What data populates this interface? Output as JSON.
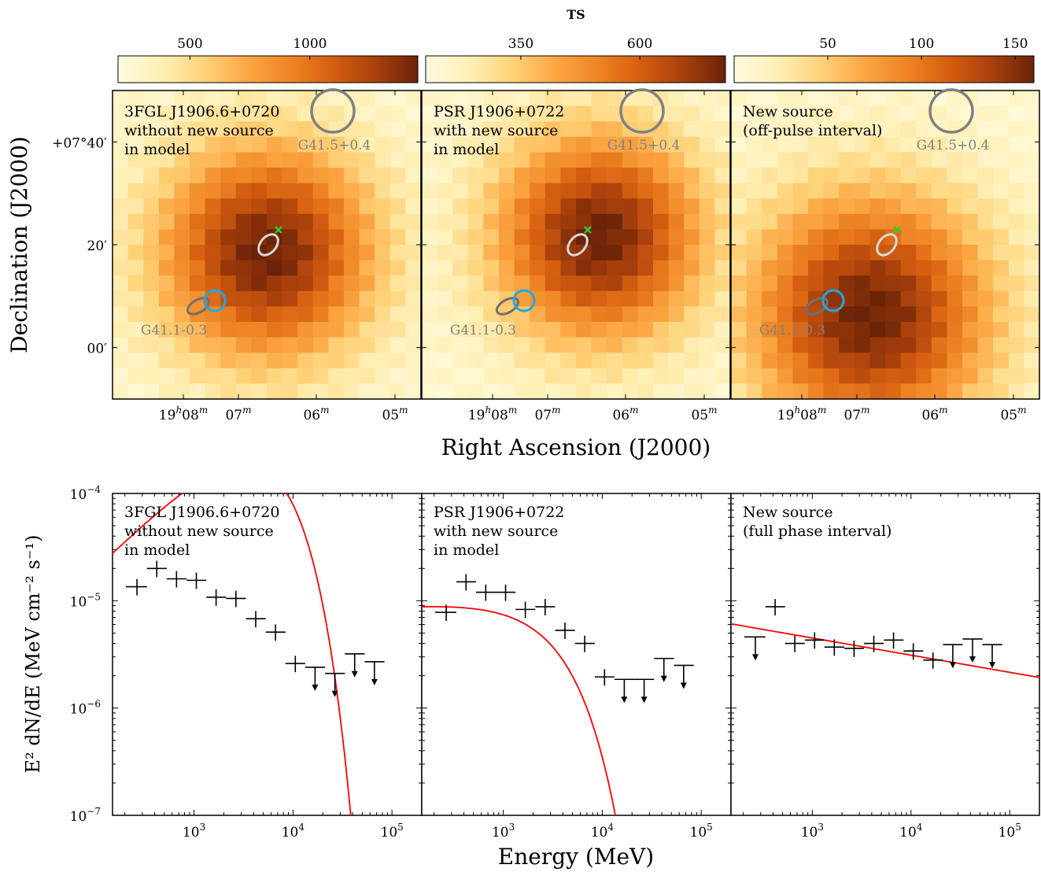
{
  "colorbar": {
    "title": "TS",
    "panels": [
      {
        "ticks": [
          {
            "value": 500,
            "label": "500"
          },
          {
            "value": 1000,
            "label": "1000"
          }
        ],
        "range": [
          200,
          1450
        ]
      },
      {
        "ticks": [
          {
            "value": 350,
            "label": "350"
          },
          {
            "value": 600,
            "label": "600"
          }
        ],
        "range": [
          150,
          780
        ]
      },
      {
        "ticks": [
          {
            "value": 50,
            "label": "50"
          },
          {
            "value": 100,
            "label": "100"
          },
          {
            "value": 150,
            "label": "150"
          }
        ],
        "range": [
          0,
          160
        ]
      }
    ],
    "colors": [
      "#fffbe0",
      "#fff0b6",
      "#ffd37a",
      "#fca845",
      "#ef8524",
      "#d65f10",
      "#a9400c",
      "#6b2307"
    ]
  },
  "maps": {
    "ylabel": "Declination (J2000)",
    "xlabel": "Right Ascension (J2000)",
    "y_ticks": [
      {
        "dec_arcmin": 40,
        "label": "+07°40′"
      },
      {
        "dec_arcmin": 20,
        "label": "20′"
      },
      {
        "dec_arcmin": 0,
        "label": "00′"
      }
    ],
    "x_ticks": [
      {
        "ra_min": 8,
        "prefix": "19",
        "sup1": "h",
        "main": "08",
        "sup2": "m"
      },
      {
        "ra_min": 7,
        "prefix": "",
        "sup1": "",
        "main": "07",
        "sup2": "m"
      },
      {
        "ra_min": 6,
        "prefix": "",
        "sup1": "",
        "main": "06",
        "sup2": "m"
      },
      {
        "ra_min": 5,
        "prefix": "",
        "sup1": "",
        "main": "05",
        "sup2": "m"
      }
    ],
    "snr_labels": {
      "top": "G41.5+0.4",
      "bottom": "G41.1-0.3"
    },
    "panels": [
      {
        "lines": [
          "3FGL J1906.6+0720",
          "without new source",
          "in model"
        ],
        "peak": [
          7.5,
          8.0
        ],
        "sigma": 3.2,
        "max_ts": 1450,
        "min_ts": 200
      },
      {
        "lines": [
          "PSR J1906+0722",
          "with new source",
          "in model"
        ],
        "peak": [
          9.0,
          7.0
        ],
        "sigma": 3.1,
        "max_ts": 780,
        "min_ts": 150
      },
      {
        "lines": [
          "New source",
          "(off-pulse interval)"
        ],
        "peak": [
          6.5,
          12.0
        ],
        "sigma": 3.6,
        "max_ts": 160,
        "min_ts": 0
      }
    ],
    "colors": {
      "psr_marker": "#33cc33",
      "new_source_circle": "#1fa9e1",
      "snr_circle": "#808080",
      "ellipse_light": "#d8d8d8",
      "ellipse_dark": "#707070"
    }
  },
  "spectra": {
    "xlabel": "Energy (MeV)",
    "ylabel": "E² dN/dE (MeV cm⁻² s⁻¹)",
    "x_ticks": [
      {
        "exp": 3,
        "base": "10",
        "sup": "3"
      },
      {
        "exp": 4,
        "base": "10",
        "sup": "4"
      },
      {
        "exp": 5,
        "base": "10",
        "sup": "5"
      }
    ],
    "y_ticks": [
      {
        "exp": -4,
        "base": "10",
        "sup": "−4"
      },
      {
        "exp": -5,
        "base": "10",
        "sup": "−5"
      },
      {
        "exp": -6,
        "base": "10",
        "sup": "−6"
      },
      {
        "exp": -7,
        "base": "10",
        "sup": "−7"
      }
    ],
    "xlim": [
      150,
      200000
    ],
    "ylim": [
      1e-07,
      0.0001
    ],
    "model_color": "#ff0000"
  },
  "chart_data": [
    {
      "type": "scatter",
      "title": "3FGL J1906.6+0720 without new source in model",
      "xlabel": "Energy (MeV)",
      "ylabel": "E² dN/dE (MeV cm⁻² s⁻¹)",
      "x_scale": "log",
      "y_scale": "log",
      "xlim": [
        150,
        200000
      ],
      "ylim": [
        1e-07,
        0.0001
      ],
      "points": [
        {
          "e": 265,
          "lo": 205,
          "hi": 335,
          "y": 1.35e-05
        },
        {
          "e": 420,
          "lo": 335,
          "hi": 530,
          "y": 2e-05
        },
        {
          "e": 665,
          "lo": 530,
          "hi": 840,
          "y": 1.6e-05
        },
        {
          "e": 1055,
          "lo": 840,
          "hi": 1330,
          "y": 1.55e-05
        },
        {
          "e": 1670,
          "lo": 1330,
          "hi": 2110,
          "y": 1.08e-05
        },
        {
          "e": 2650,
          "lo": 2110,
          "hi": 3340,
          "y": 1.05e-05
        },
        {
          "e": 4200,
          "lo": 3340,
          "hi": 5300,
          "y": 6.8e-06
        },
        {
          "e": 6650,
          "lo": 5300,
          "hi": 8400,
          "y": 5.1e-06
        },
        {
          "e": 10550,
          "lo": 8400,
          "hi": 13300,
          "y": 2.6e-06
        },
        {
          "e": 16700,
          "lo": 13300,
          "hi": 21100,
          "y": 2.4e-06,
          "ul": true
        },
        {
          "e": 26500,
          "lo": 21100,
          "hi": 33400,
          "y": 2.1e-06,
          "ul": true
        },
        {
          "e": 42000,
          "lo": 33400,
          "hi": 53000,
          "y": 3.2e-06,
          "ul": true
        },
        {
          "e": 66500,
          "lo": 53000,
          "hi": 84000,
          "y": 2.7e-06,
          "ul": true
        }
      ],
      "model": {
        "form": "exp_cutoff",
        "norm": 2e-05,
        "e0": 100,
        "index": 1.1,
        "cutoff": 3600
      }
    },
    {
      "type": "scatter",
      "title": "PSR J1906+0722 with new source in model",
      "xlabel": "Energy (MeV)",
      "ylabel": "E² dN/dE (MeV cm⁻² s⁻¹)",
      "x_scale": "log",
      "y_scale": "log",
      "xlim": [
        150,
        200000
      ],
      "ylim": [
        1e-07,
        0.0001
      ],
      "points": [
        {
          "e": 265,
          "lo": 205,
          "hi": 335,
          "y": 7.8e-06
        },
        {
          "e": 420,
          "lo": 335,
          "hi": 530,
          "y": 1.5e-05
        },
        {
          "e": 665,
          "lo": 530,
          "hi": 840,
          "y": 1.2e-05
        },
        {
          "e": 1055,
          "lo": 840,
          "hi": 1330,
          "y": 1.2e-05
        },
        {
          "e": 1670,
          "lo": 1330,
          "hi": 2110,
          "y": 8.3e-06
        },
        {
          "e": 2650,
          "lo": 2110,
          "hi": 3340,
          "y": 8.8e-06
        },
        {
          "e": 4200,
          "lo": 3340,
          "hi": 5300,
          "y": 5.3e-06
        },
        {
          "e": 6650,
          "lo": 5300,
          "hi": 8400,
          "y": 4e-06
        },
        {
          "e": 10550,
          "lo": 8400,
          "hi": 13300,
          "y": 1.95e-06
        },
        {
          "e": 16700,
          "lo": 13300,
          "hi": 21100,
          "y": 1.85e-06,
          "ul": true
        },
        {
          "e": 26500,
          "lo": 21100,
          "hi": 33400,
          "y": 1.85e-06,
          "ul": true
        },
        {
          "e": 42000,
          "lo": 33400,
          "hi": 53000,
          "y": 2.9e-06,
          "ul": true
        },
        {
          "e": 66500,
          "lo": 53000,
          "hi": 84000,
          "y": 2.5e-06,
          "ul": true
        }
      ],
      "model": {
        "form": "exp_cutoff",
        "norm": 9e-06,
        "e0": 100,
        "index": 1.93,
        "cutoff": 2800
      }
    },
    {
      "type": "scatter",
      "title": "New source (full phase interval)",
      "xlabel": "Energy (MeV)",
      "ylabel": "E² dN/dE (MeV cm⁻² s⁻¹)",
      "x_scale": "log",
      "y_scale": "log",
      "xlim": [
        150,
        200000
      ],
      "ylim": [
        1e-07,
        0.0001
      ],
      "points": [
        {
          "e": 265,
          "lo": 205,
          "hi": 335,
          "y": 4.6e-06,
          "ul": true
        },
        {
          "e": 420,
          "lo": 335,
          "hi": 530,
          "y": 8.8e-06
        },
        {
          "e": 665,
          "lo": 530,
          "hi": 840,
          "y": 4e-06
        },
        {
          "e": 1055,
          "lo": 840,
          "hi": 1330,
          "y": 4.3e-06
        },
        {
          "e": 1670,
          "lo": 1330,
          "hi": 2110,
          "y": 3.7e-06
        },
        {
          "e": 2650,
          "lo": 2110,
          "hi": 3340,
          "y": 3.6e-06
        },
        {
          "e": 4200,
          "lo": 3340,
          "hi": 5300,
          "y": 4e-06
        },
        {
          "e": 6650,
          "lo": 5300,
          "hi": 8400,
          "y": 4.3e-06
        },
        {
          "e": 10550,
          "lo": 8400,
          "hi": 13300,
          "y": 3.4e-06
        },
        {
          "e": 16700,
          "lo": 13300,
          "hi": 21100,
          "y": 2.8e-06
        },
        {
          "e": 26500,
          "lo": 21100,
          "hi": 33400,
          "y": 3.9e-06,
          "ul": true
        },
        {
          "e": 42000,
          "lo": 33400,
          "hi": 53000,
          "y": 4.4e-06,
          "ul": true
        },
        {
          "e": 66500,
          "lo": 53000,
          "hi": 84000,
          "y": 3.9e-06,
          "ul": true
        }
      ],
      "model": {
        "form": "powerlaw",
        "norm": 6.5e-06,
        "e0": 100,
        "index": 2.16
      }
    }
  ]
}
